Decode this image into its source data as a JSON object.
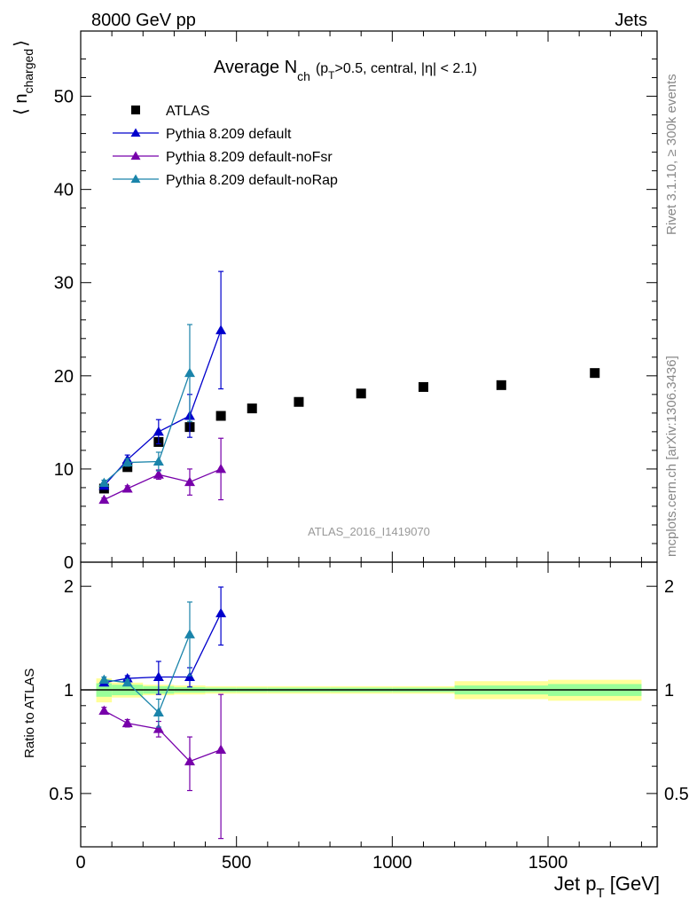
{
  "header": {
    "energy_label": "8000 GeV pp",
    "process_label": "Jets",
    "analysis_id": "ATLAS_2016_I1419070",
    "side_rivet": "Rivet 3.1.10, ≥ 300k events",
    "side_mcplots": "mcplots.cern.ch [arXiv:1306.3436]"
  },
  "chart_data": [
    {
      "type": "scatter",
      "title_parts": {
        "main": "Average N",
        "sub": "ch",
        "cond_a": "(p",
        "cond_sub": "T",
        "cond_b": ">0.5, central, |η| < 2.1)"
      },
      "ylabel_parts": {
        "main": "⟨ n",
        "sub": "charged",
        "close": "⟩"
      },
      "xlim": [
        0,
        1850
      ],
      "ylim": [
        0,
        57
      ],
      "y_ticks": [
        "0",
        "10",
        "20",
        "30",
        "40",
        "50"
      ],
      "legend_position": "top-left",
      "series": [
        {
          "name": "ATLAS",
          "marker": "square",
          "color": "#000000",
          "x": [
            75,
            150,
            250,
            350,
            450,
            550,
            700,
            900,
            1100,
            1350,
            1650
          ],
          "y": [
            7.9,
            10.2,
            12.9,
            14.5,
            15.7,
            16.5,
            17.2,
            18.1,
            18.8,
            19.0,
            20.3
          ]
        },
        {
          "name": "Pythia 8.209 default",
          "marker": "triangle",
          "color": "#0000cc",
          "x": [
            75,
            150,
            250,
            350,
            450
          ],
          "y": [
            8.2,
            11.0,
            14.0,
            15.7,
            24.9
          ],
          "err": [
            0.3,
            0.5,
            1.3,
            2.3,
            6.3
          ]
        },
        {
          "name": "Pythia 8.209 default-noFsr",
          "marker": "triangle",
          "color": "#7700aa",
          "x": [
            75,
            150,
            250,
            350,
            450
          ],
          "y": [
            6.7,
            7.9,
            9.4,
            8.6,
            10.0
          ],
          "err": [
            0.2,
            0.3,
            0.5,
            1.4,
            3.3
          ]
        },
        {
          "name": "Pythia 8.209 default-noRap",
          "marker": "triangle",
          "color": "#1a84aa",
          "x": [
            75,
            150,
            250,
            350
          ],
          "y": [
            8.5,
            10.7,
            10.8,
            20.3
          ],
          "err": [
            0.3,
            0.4,
            1.0,
            5.2
          ]
        }
      ]
    },
    {
      "type": "scatter",
      "ylabel": "Ratio to ATLAS",
      "xlabel_parts": {
        "main": "Jet p",
        "sub": "T",
        "unit": " [GeV]"
      },
      "log_y": true,
      "ylim": [
        0.35,
        2.35
      ],
      "x_ticks": [
        "0",
        "500",
        "1000",
        "1500"
      ],
      "y_ticks": [
        "0.5",
        "1",
        "2"
      ],
      "bands": {
        "edges": [
          50,
          100,
          200,
          300,
          400,
          500,
          600,
          800,
          1000,
          1200,
          1500,
          1800
        ],
        "green_half": [
          0.045,
          0.035,
          0.025,
          0.018,
          0.015,
          0.015,
          0.015,
          0.015,
          0.015,
          0.03,
          0.04
        ],
        "yellow_half": [
          0.08,
          0.05,
          0.035,
          0.03,
          0.025,
          0.025,
          0.025,
          0.025,
          0.025,
          0.06,
          0.07
        ]
      },
      "series": [
        {
          "name": "Pythia 8.209 default",
          "color": "#0000cc",
          "x": [
            75,
            150,
            250,
            350,
            450
          ],
          "y": [
            1.05,
            1.08,
            1.09,
            1.09,
            1.67
          ],
          "err": [
            0.02,
            0.02,
            0.12,
            0.07,
            0.32
          ]
        },
        {
          "name": "Pythia 8.209 default-noFsr",
          "color": "#7700aa",
          "x": [
            75,
            150,
            250,
            350,
            450
          ],
          "y": [
            0.87,
            0.8,
            0.77,
            0.62,
            0.67
          ],
          "err": [
            0.02,
            0.02,
            0.04,
            0.11,
            0.3
          ]
        },
        {
          "name": "Pythia 8.209 default-noRap",
          "color": "#1a84aa",
          "x": [
            75,
            150,
            250,
            350
          ],
          "y": [
            1.07,
            1.05,
            0.86,
            1.45
          ],
          "err": [
            0.02,
            0.02,
            0.08,
            0.35
          ]
        }
      ]
    }
  ]
}
